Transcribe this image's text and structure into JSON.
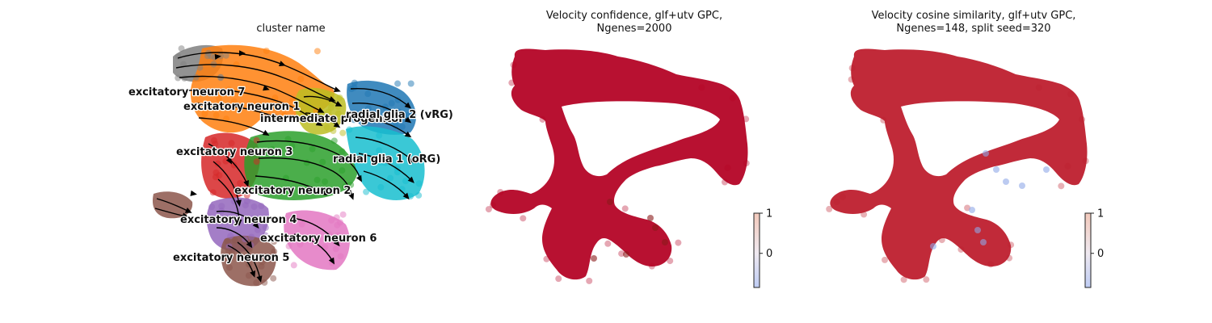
{
  "panels": [
    {
      "title": "cluster name",
      "type": "scatter"
    },
    {
      "title": "Velocity confidence, glf+utv GPC,\nNgenes=2000",
      "type": "scatter",
      "colorbar": {
        "ticks": [
          "1",
          "0"
        ],
        "vmin": -0.85,
        "vmax": 1.0,
        "colormap": "coolwarm"
      }
    },
    {
      "title": "Velocity cosine similarity, glf+utv GPC,\nNgenes=148, split seed=320",
      "type": "scatter",
      "colorbar": {
        "ticks": [
          "1",
          "0"
        ],
        "vmin": -0.85,
        "vmax": 1.0,
        "colormap": "coolwarm"
      }
    }
  ],
  "chart_data": [
    {
      "type": "scatter",
      "title": "cluster name",
      "clusters": [
        {
          "name": "excitatory neuron 7",
          "color": "#7f7f7f"
        },
        {
          "name": "excitatory neuron 1",
          "color": "#ff7f0e"
        },
        {
          "name": "intermediate progenitor",
          "color": "#bcbd22"
        },
        {
          "name": "radial glia 2 (vRG)",
          "color": "#1f77b4"
        },
        {
          "name": "excitatory neuron 3",
          "color": "#d62728"
        },
        {
          "name": "radial glia 1 (oRG)",
          "color": "#17becf"
        },
        {
          "name": "excitatory neuron 2",
          "color": "#2ca02c"
        },
        {
          "name": "excitatory neuron 4",
          "color": "#9467bd"
        },
        {
          "name": "excitatory neuron 6",
          "color": "#e377c2"
        },
        {
          "name": "excitatory neuron 5",
          "color": "#8c564b"
        }
      ],
      "labels": [
        {
          "text": "excitatory neuron 7"
        },
        {
          "text": "excitatory neuron 1"
        },
        {
          "text": "intermediate progenitor"
        },
        {
          "text": "radial glia 2 (vRG)"
        },
        {
          "text": "excitatory neuron 3"
        },
        {
          "text": "radial glia 1 (oRG)"
        },
        {
          "text": "excitatory neuron 2"
        },
        {
          "text": "excitatory neuron 4"
        },
        {
          "text": "excitatory neuron 6"
        },
        {
          "text": "excitatory neuron 5"
        }
      ],
      "overlay": "velocity streamlines"
    },
    {
      "type": "scatter",
      "title": "Velocity confidence, glf+utv GPC,\nNgenes=2000",
      "color": "#b40426",
      "colorbar": {
        "vmin": -0.85,
        "vmax": 1.0,
        "ticks": [
          1,
          0
        ]
      }
    },
    {
      "type": "scatter",
      "title": "Velocity cosine similarity, glf+utv GPC,\nNgenes=148, split seed=320",
      "color": "#be1f2e",
      "colorbar": {
        "vmin": -0.85,
        "vmax": 1.0,
        "ticks": [
          1,
          0
        ]
      }
    }
  ]
}
